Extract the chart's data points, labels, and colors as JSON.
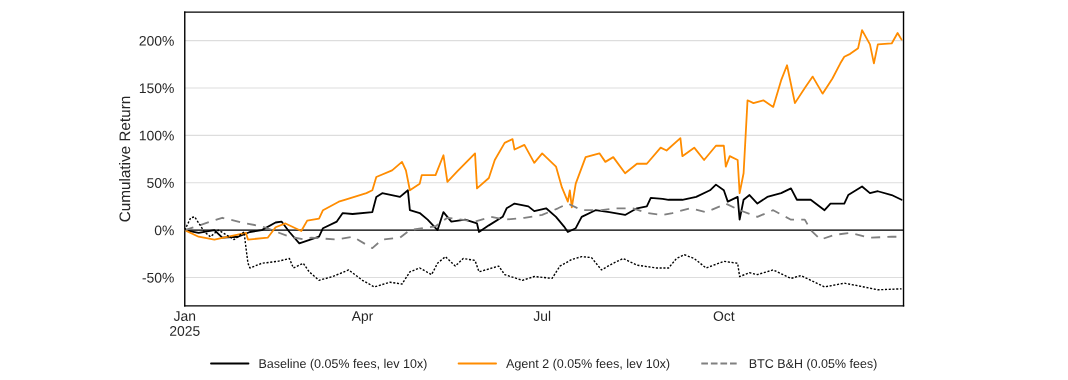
{
  "chart_data": {
    "type": "line",
    "ylabel": "Cumulative Return",
    "xlim": [
      "2025-01-01",
      "2025-12-31"
    ],
    "ylim": [
      -80,
      230
    ],
    "xticks": [
      {
        "value": "2025-01-01",
        "label": "Jan\n2025"
      },
      {
        "value": "2025-04-01",
        "label": "Apr"
      },
      {
        "value": "2025-07-01",
        "label": "Jul"
      },
      {
        "value": "2025-10-01",
        "label": "Oct"
      }
    ],
    "yticks": [
      {
        "value": -50,
        "label": "-50%"
      },
      {
        "value": 0,
        "label": "0%"
      },
      {
        "value": 50,
        "label": "50%"
      },
      {
        "value": 100,
        "label": "100%"
      },
      {
        "value": 150,
        "label": "150%"
      },
      {
        "value": 200,
        "label": "200%"
      }
    ],
    "grid": "y",
    "legend": "bottom",
    "ref_lines": [
      {
        "axis": "y",
        "value": 0,
        "color": "#000000",
        "line_style": "solid"
      }
    ],
    "series": [
      {
        "name": "Baseline (0.05% fees, lev 10x)",
        "color": "#000000",
        "line_style": "solid",
        "x": [
          "2025-01-01",
          "2025-01-08",
          "2025-01-16",
          "2025-01-20",
          "2025-01-28",
          "2025-02-03",
          "2025-02-09",
          "2025-02-16",
          "2025-02-19",
          "2025-02-23",
          "2025-02-28",
          "2025-03-03",
          "2025-03-10",
          "2025-03-12",
          "2025-03-19",
          "2025-03-22",
          "2025-03-27",
          "2025-04-06",
          "2025-04-08",
          "2025-04-11",
          "2025-04-20",
          "2025-04-24",
          "2025-04-25",
          "2025-04-30",
          "2025-05-04",
          "2025-05-09",
          "2025-05-12",
          "2025-05-16",
          "2025-05-23",
          "2025-05-29",
          "2025-05-30",
          "2025-06-04",
          "2025-06-11",
          "2025-06-13",
          "2025-06-17",
          "2025-06-24",
          "2025-06-27",
          "2025-07-03",
          "2025-07-08",
          "2025-07-12",
          "2025-07-14",
          "2025-07-18",
          "2025-07-21",
          "2025-07-28",
          "2025-08-04",
          "2025-08-12",
          "2025-08-18",
          "2025-08-23",
          "2025-08-25",
          "2025-08-31",
          "2025-09-03",
          "2025-09-10",
          "2025-09-17",
          "2025-09-24",
          "2025-09-27",
          "2025-10-01",
          "2025-10-03",
          "2025-10-08",
          "2025-10-09",
          "2025-10-11",
          "2025-10-14",
          "2025-10-18",
          "2025-10-23",
          "2025-10-30",
          "2025-11-04",
          "2025-11-07",
          "2025-11-14",
          "2025-11-21",
          "2025-11-24",
          "2025-12-01",
          "2025-12-03",
          "2025-12-10",
          "2025-12-14",
          "2025-12-18",
          "2025-12-25",
          "2025-12-30"
        ],
        "values": [
          0,
          -3,
          0,
          -8,
          -7,
          -2,
          0,
          8,
          9,
          -2,
          -14,
          -12,
          -7,
          2,
          9,
          18,
          17,
          19,
          35,
          39,
          35,
          42,
          21,
          18,
          11,
          0,
          19,
          9,
          11,
          7,
          -2,
          5,
          14,
          23,
          28,
          25,
          20,
          23,
          14,
          4,
          -2,
          2,
          14,
          21,
          19,
          16,
          23,
          25,
          34,
          33,
          32,
          32,
          35,
          42,
          48,
          42,
          30,
          35,
          11,
          32,
          37,
          28,
          35,
          39,
          44,
          32,
          32,
          21,
          28,
          28,
          37,
          46,
          39,
          41,
          37,
          32
        ]
      },
      {
        "name": "Agent 2 (0.05% fees, lev 10x)",
        "color": "#ff8c00",
        "line_style": "solid",
        "x": [
          "2025-01-01",
          "2025-01-08",
          "2025-01-16",
          "2025-02-01",
          "2025-02-02",
          "2025-02-12",
          "2025-02-16",
          "2025-02-21",
          "2025-03-01",
          "2025-03-04",
          "2025-03-10",
          "2025-03-12",
          "2025-03-20",
          "2025-03-23",
          "2025-04-03",
          "2025-04-06",
          "2025-04-08",
          "2025-04-16",
          "2025-04-21",
          "2025-04-23",
          "2025-04-25",
          "2025-04-30",
          "2025-05-01",
          "2025-05-08",
          "2025-05-12",
          "2025-05-14",
          "2025-05-19",
          "2025-05-28",
          "2025-05-29",
          "2025-06-04",
          "2025-06-07",
          "2025-06-12",
          "2025-06-16",
          "2025-06-17",
          "2025-06-22",
          "2025-06-27",
          "2025-07-01",
          "2025-07-08",
          "2025-07-11",
          "2025-07-14",
          "2025-07-15",
          "2025-07-16",
          "2025-07-18",
          "2025-07-23",
          "2025-07-30",
          "2025-08-02",
          "2025-08-06",
          "2025-08-12",
          "2025-08-18",
          "2025-08-23",
          "2025-08-30",
          "2025-09-02",
          "2025-09-09",
          "2025-09-10",
          "2025-09-16",
          "2025-09-21",
          "2025-09-27",
          "2025-10-01",
          "2025-10-02",
          "2025-10-04",
          "2025-10-08",
          "2025-10-09",
          "2025-10-11",
          "2025-10-13",
          "2025-10-16",
          "2025-10-21",
          "2025-10-26",
          "2025-10-30",
          "2025-11-02",
          "2025-11-06",
          "2025-11-11",
          "2025-11-15",
          "2025-11-20",
          "2025-11-25",
          "2025-11-29",
          "2025-12-01",
          "2025-12-04",
          "2025-12-08",
          "2025-12-10",
          "2025-12-14",
          "2025-12-16",
          "2025-12-18",
          "2025-12-25",
          "2025-12-28",
          "2025-12-30"
        ],
        "values": [
          0,
          -7,
          -10,
          -3,
          -10,
          -8,
          3,
          7,
          -1,
          10,
          12,
          21,
          30,
          32,
          39,
          42,
          56,
          63,
          72,
          63,
          42,
          49,
          58,
          58,
          79,
          51,
          62,
          81,
          44,
          55,
          74,
          92,
          96,
          85,
          90,
          71,
          81,
          67,
          45,
          30,
          42,
          24,
          49,
          77,
          81,
          72,
          77,
          60,
          70,
          70,
          87,
          84,
          97,
          78,
          87,
          74,
          89,
          89,
          67,
          78,
          74,
          39,
          60,
          137,
          134,
          137,
          130,
          158,
          174,
          134,
          150,
          162,
          144,
          160,
          176,
          183,
          186,
          192,
          211,
          196,
          176,
          196,
          197,
          208,
          201
        ]
      },
      {
        "name": "BTC B&H (0.05% fees)",
        "color": "#808080",
        "line_style": "dashed",
        "x": [
          "2025-01-01",
          "2025-01-20",
          "2025-02-01",
          "2025-02-09",
          "2025-02-23",
          "2025-03-03",
          "2025-03-06",
          "2025-03-19",
          "2025-03-27",
          "2025-04-06",
          "2025-04-11",
          "2025-04-20",
          "2025-04-25",
          "2025-05-08",
          "2025-05-14",
          "2025-05-28",
          "2025-06-05",
          "2025-06-12",
          "2025-06-22",
          "2025-07-01",
          "2025-07-09",
          "2025-07-14",
          "2025-07-21",
          "2025-07-31",
          "2025-08-07",
          "2025-08-16",
          "2025-08-23",
          "2025-08-31",
          "2025-09-05",
          "2025-09-14",
          "2025-09-22",
          "2025-09-29",
          "2025-10-02",
          "2025-10-09",
          "2025-10-18",
          "2025-10-26",
          "2025-11-04",
          "2025-11-11",
          "2025-11-14",
          "2025-11-19",
          "2025-11-26",
          "2025-12-04",
          "2025-12-14",
          "2025-12-25",
          "2025-12-30"
        ],
        "values": [
          0,
          13,
          7,
          4,
          -7,
          -10,
          -8,
          -10,
          -7,
          -19,
          -10,
          -8,
          0,
          4,
          13,
          9,
          14,
          11,
          13,
          16,
          23,
          28,
          21,
          21,
          23,
          23,
          18,
          16,
          18,
          23,
          19,
          25,
          28,
          21,
          14,
          21,
          11,
          11,
          0,
          -10,
          -5,
          -3,
          -8,
          -7,
          -7
        ]
      },
      {
        "color": "#000000",
        "line_style": "dotted",
        "x": [
          "2025-01-01",
          "2025-01-04",
          "2025-01-06",
          "2025-01-11",
          "2025-01-14",
          "2025-01-18",
          "2025-01-26",
          "2025-01-31",
          "2025-02-02",
          "2025-02-03",
          "2025-02-09",
          "2025-02-17",
          "2025-02-23",
          "2025-02-25",
          "2025-03-02",
          "2025-03-05",
          "2025-03-10",
          "2025-03-17",
          "2025-03-25",
          "2025-04-01",
          "2025-04-07",
          "2025-04-15",
          "2025-04-21",
          "2025-04-25",
          "2025-04-30",
          "2025-05-06",
          "2025-05-09",
          "2025-05-13",
          "2025-05-18",
          "2025-05-22",
          "2025-05-28",
          "2025-05-30",
          "2025-06-09",
          "2025-06-12",
          "2025-06-21",
          "2025-06-27",
          "2025-07-06",
          "2025-07-10",
          "2025-07-16",
          "2025-07-21",
          "2025-07-26",
          "2025-07-31",
          "2025-08-06",
          "2025-08-11",
          "2025-08-18",
          "2025-08-28",
          "2025-09-03",
          "2025-09-07",
          "2025-09-11",
          "2025-09-16",
          "2025-09-22",
          "2025-10-01",
          "2025-10-08",
          "2025-10-09",
          "2025-10-14",
          "2025-10-18",
          "2025-10-26",
          "2025-11-04",
          "2025-11-09",
          "2025-11-21",
          "2025-12-01",
          "2025-12-11",
          "2025-12-18",
          "2025-12-30"
        ],
        "values": [
          0,
          13,
          14,
          -2,
          -7,
          0,
          -10,
          -2,
          -35,
          -40,
          -35,
          -33,
          -30,
          -40,
          -35,
          -44,
          -53,
          -49,
          -42,
          -53,
          -60,
          -55,
          -57,
          -44,
          -40,
          -47,
          -35,
          -28,
          -38,
          -30,
          -32,
          -44,
          -38,
          -47,
          -53,
          -49,
          -51,
          -38,
          -31,
          -28,
          -29,
          -42,
          -35,
          -30,
          -37,
          -40,
          -40,
          -30,
          -26,
          -30,
          -40,
          -33,
          -35,
          -49,
          -45,
          -47,
          -42,
          -51,
          -48,
          -60,
          -56,
          -60,
          -63,
          -62
        ]
      }
    ]
  }
}
